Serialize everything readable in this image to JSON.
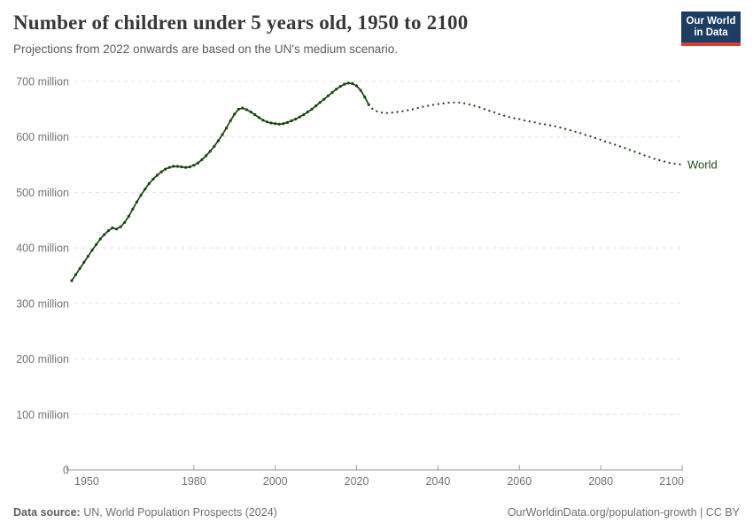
{
  "header": {
    "title": "Number of children under 5 years old, 1950 to 2100",
    "subtitle": "Projections from 2022 onwards are based on the UN's medium scenario.",
    "logo": {
      "line1": "Our World",
      "line2": "in Data"
    }
  },
  "footer": {
    "source_label": "Data source:",
    "source_text": " UN, World Population Prospects (2024)",
    "link_text": "OurWorldinData.org/population-growth | CC BY"
  },
  "colors": {
    "line": "#18470f",
    "entity_label": "#1f4f14",
    "grid": "#e2e2e2",
    "axis": "#999999",
    "tick_text": "#737373",
    "logo_bg": "#1d3d63",
    "logo_accent": "#dc3e32"
  },
  "chart_data": {
    "type": "line",
    "title": "Number of children under 5 years old, 1950 to 2100",
    "subtitle": "Projections from 2022 onwards are based on the UN's medium scenario.",
    "unit": "million",
    "entity_label": "World",
    "xlim": [
      1950,
      2100
    ],
    "ylim": [
      0,
      700
    ],
    "grid": "horizontal-dashed",
    "xticks": [
      1950,
      1980,
      2000,
      2020,
      2040,
      2060,
      2080,
      2100
    ],
    "yticks": [
      {
        "value": 0,
        "label": "0"
      },
      {
        "value": 100,
        "label": "100 million"
      },
      {
        "value": 200,
        "label": "200 million"
      },
      {
        "value": 300,
        "label": "300 million"
      },
      {
        "value": 400,
        "label": "400 million"
      },
      {
        "value": 500,
        "label": "500 million"
      },
      {
        "value": 600,
        "label": "600 million"
      },
      {
        "value": 700,
        "label": "700 million"
      }
    ],
    "series": [
      {
        "name": "World — estimates",
        "style": "solid-with-markers",
        "start_year": 1950,
        "values": [
          341,
          352,
          363,
          374,
          385,
          396,
          406,
          416,
          424,
          431,
          436,
          434,
          438,
          446,
          457,
          470,
          483,
          495,
          506,
          516,
          524,
          531,
          537,
          542,
          545,
          547,
          547,
          546,
          545,
          546,
          549,
          553,
          559,
          566,
          574,
          583,
          593,
          604,
          616,
          629,
          641,
          650,
          652,
          649,
          645,
          640,
          635,
          630,
          627,
          625,
          624,
          623,
          624,
          626,
          629,
          632,
          636,
          640,
          645,
          650,
          656,
          662,
          668,
          674,
          680,
          686,
          691,
          695,
          697,
          696,
          692,
          684,
          672,
          658
        ]
      },
      {
        "name": "World — UN medium-scenario projection",
        "style": "dotted",
        "start_year": 2024,
        "values": [
          650,
          646,
          644,
          643,
          643,
          644,
          645,
          646,
          647,
          649,
          650,
          652,
          654,
          655,
          657,
          658,
          659,
          660,
          661,
          662,
          662,
          662,
          661,
          660,
          658,
          656,
          654,
          651,
          649,
          646,
          644,
          641,
          639,
          637,
          635,
          633,
          632,
          630,
          629,
          627,
          626,
          624,
          623,
          622,
          620,
          619,
          617,
          615,
          613,
          611,
          609,
          607,
          604,
          602,
          600,
          597,
          595,
          592,
          590,
          587,
          585,
          582,
          580,
          577,
          574,
          572,
          569,
          566,
          564,
          561,
          559,
          557,
          555,
          553,
          552,
          551,
          550
        ]
      }
    ]
  }
}
